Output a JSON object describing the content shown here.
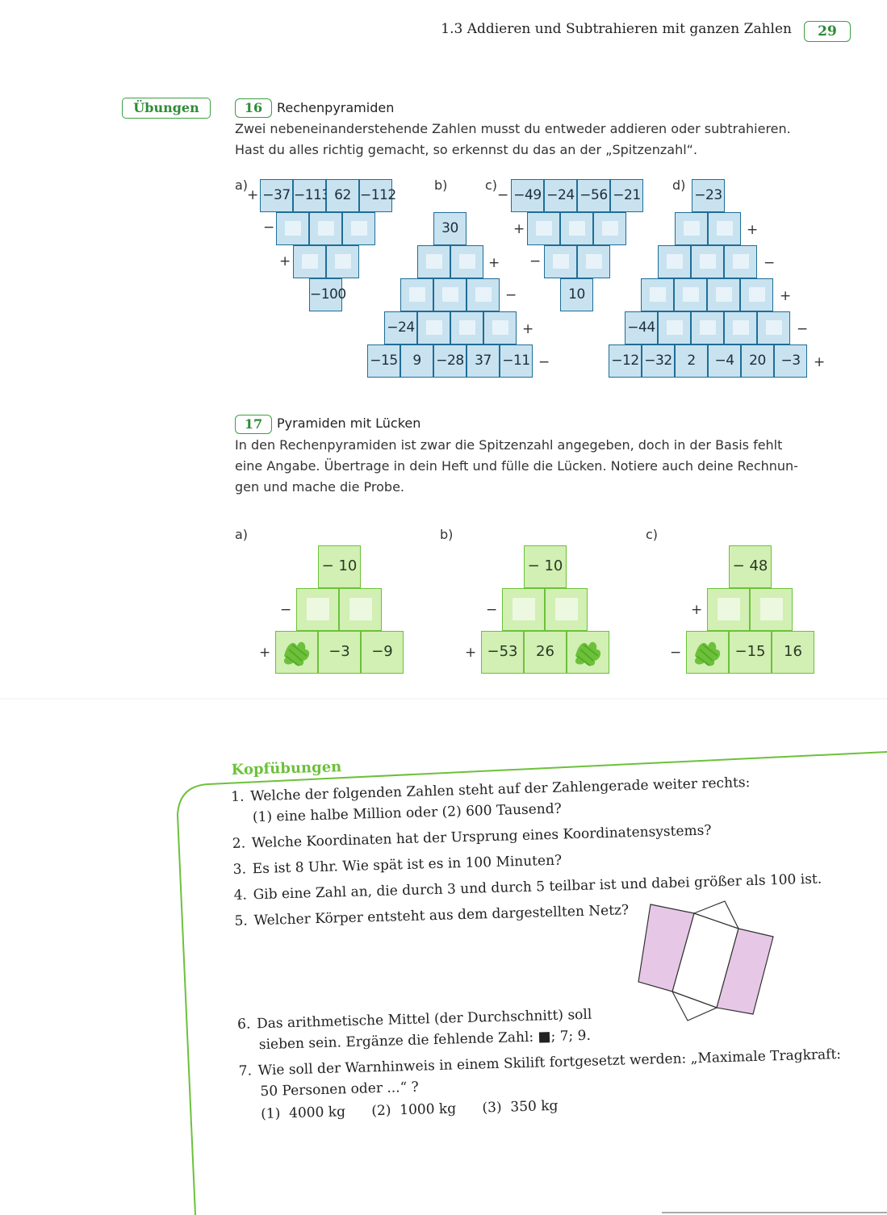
{
  "header": {
    "section": "1.3  Addieren und Subtrahieren mit ganzen Zahlen",
    "page_number": "29"
  },
  "label_uebungen": "Übungen",
  "task16": {
    "number": "16",
    "title": "Rechenpyramiden",
    "text_line1": "Zwei nebeneinanderstehende Zahlen musst du entweder addieren oder subtrahieren.",
    "text_line2": "Hast du alles richtig gemacht, so erkennst du das an der „Spitzenzahl“.",
    "labels": {
      "a": "a)",
      "b": "b)",
      "c": "c)",
      "d": "d)"
    },
    "a": {
      "row1": [
        "−37",
        "−113",
        "62",
        "−112"
      ],
      "row4": "−100",
      "ops": [
        "+",
        "−",
        "+"
      ]
    },
    "b": {
      "top": "30",
      "row4_first": "−24",
      "row5": [
        "−15",
        "9",
        "−28",
        "37",
        "−11"
      ],
      "ops": [
        "+",
        "−",
        "+",
        "−"
      ]
    },
    "c": {
      "row1": [
        "−49",
        "−24",
        "−56",
        "−21"
      ],
      "bottom": "10",
      "ops": [
        "−",
        "+",
        "−"
      ]
    },
    "d": {
      "top": "−23",
      "row5_first": "−44",
      "row6": [
        "−12",
        "−32",
        "2",
        "−4",
        "20",
        "−3"
      ],
      "ops": [
        "+",
        "−",
        "+",
        "−",
        "+"
      ]
    }
  },
  "task17": {
    "number": "17",
    "title": "Pyramiden mit Lücken",
    "text_line1": "In den Rechenpyramiden ist zwar die Spitzenzahl angegeben, doch in der Basis fehlt",
    "text_line2": "eine Angabe. Übertrage in dein Heft und fülle die Lücken. Notiere auch deine Rechnun-",
    "text_line3": "gen und mache die Probe.",
    "labels": {
      "a": "a)",
      "b": "b)",
      "c": "c)"
    },
    "a": {
      "top": "− 10",
      "base": [
        "−3",
        "−9"
      ],
      "ops": [
        "−",
        "+"
      ]
    },
    "b": {
      "top": "− 10",
      "base": [
        "−53",
        "26"
      ],
      "ops": [
        "−",
        "+"
      ]
    },
    "c": {
      "top": "− 48",
      "base": [
        "−15",
        "16"
      ],
      "ops": [
        "+",
        "−"
      ]
    }
  },
  "kopfuebungen": {
    "title": "Kopfübungen",
    "items": [
      {
        "n": "1.",
        "text": "Welche der folgenden Zahlen steht auf der Zahlengerade weiter rechts:"
      },
      {
        "n": "",
        "text": "(1)  eine halbe Million oder (2)  600 Tausend?"
      },
      {
        "n": "2.",
        "text": "Welche Koordinaten hat der Ursprung eines Koordinatensystems?"
      },
      {
        "n": "3.",
        "text": "Es ist 8 Uhr. Wie spät ist es in 100 Minuten?"
      },
      {
        "n": "4.",
        "text": "Gib eine Zahl an, die durch 3 und durch 5 teilbar ist und dabei größer als 100 ist."
      },
      {
        "n": "5.",
        "text": "Welcher Körper entsteht aus dem dargestellten Netz?"
      },
      {
        "n": "6.",
        "text": "Das arithmetische Mittel (der Durchschnitt) soll"
      },
      {
        "n": "",
        "text": "sieben sein. Ergänze die fehlende Zahl: ■; 7; 9."
      },
      {
        "n": "7.",
        "text": "Wie soll der Warnhinweis in einem Skilift fortgesetzt werden: „Maximale Tragkraft:"
      },
      {
        "n": "",
        "text": "50 Personen oder ...“ ?"
      },
      {
        "n": "",
        "text": "(1)  4000 kg      (2)  1000 kg      (3)  350 kg"
      }
    ]
  },
  "colors": {
    "green": "#3aa040",
    "light_green": "#6cc13a",
    "blue_cell": "#c8e2f0",
    "blue_border": "#1e6e96",
    "net_pink": "#e6c8e6"
  }
}
